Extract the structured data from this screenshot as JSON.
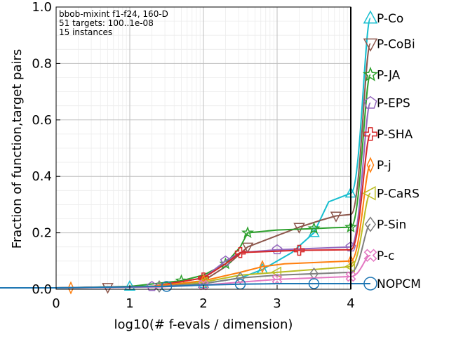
{
  "chart_data": {
    "type": "line",
    "xlabel": "log10(# f-evals / dimension)",
    "ylabel": "Fraction of function,target pairs",
    "xlim": [
      0,
      4
    ],
    "ylim": [
      0,
      1
    ],
    "xticks": [
      "0",
      "1",
      "2",
      "3",
      "4"
    ],
    "yticks": [
      "0.0",
      "0.2",
      "0.4",
      "0.6",
      "0.8",
      "1.0"
    ],
    "grid": true,
    "legend": "right",
    "annotations": [
      "bbob-mixint f1-f24, 160-D",
      "51 targets: 100..1e-08",
      "15 instances"
    ],
    "series": [
      {
        "name": "P-Co",
        "color": "#17becf",
        "marker": "triangle-up",
        "final": 0.96,
        "x": [
          0,
          0.3,
          1,
          1.5,
          2,
          2.5,
          2.8,
          3.2,
          3.5,
          3.7,
          4
        ],
        "y": [
          0.005,
          0.006,
          0.01,
          0.012,
          0.02,
          0.04,
          0.07,
          0.13,
          0.2,
          0.31,
          0.34
        ]
      },
      {
        "name": "P-CoBi",
        "color": "#8c564b",
        "marker": "triangle-down",
        "final": 0.87,
        "x": [
          0,
          0.7,
          1.5,
          2,
          2.3,
          2.6,
          3,
          3.3,
          3.6,
          3.8,
          4
        ],
        "y": [
          0.005,
          0.007,
          0.012,
          0.03,
          0.08,
          0.15,
          0.19,
          0.22,
          0.245,
          0.26,
          0.265
        ]
      },
      {
        "name": "P-JA",
        "color": "#2ca02c",
        "marker": "star",
        "final": 0.76,
        "x": [
          0,
          1,
          1.7,
          2,
          2.3,
          2.5,
          2.6,
          3,
          3.5,
          3.75,
          4
        ],
        "y": [
          0.005,
          0.01,
          0.03,
          0.05,
          0.09,
          0.15,
          0.2,
          0.21,
          0.215,
          0.218,
          0.22
        ]
      },
      {
        "name": "P-EPS",
        "color": "#9467bd",
        "marker": "pentagon",
        "final": 0.66,
        "x": [
          0,
          1.3,
          2,
          2.3,
          2.5,
          3,
          3.5,
          4
        ],
        "y": [
          0.005,
          0.01,
          0.04,
          0.1,
          0.13,
          0.14,
          0.145,
          0.15
        ]
      },
      {
        "name": "P-SHA",
        "color": "#d62728",
        "marker": "plus",
        "final": 0.55,
        "x": [
          0,
          1.3,
          2,
          2.3,
          2.5,
          3,
          3.3,
          4
        ],
        "y": [
          0.005,
          0.01,
          0.04,
          0.09,
          0.13,
          0.135,
          0.138,
          0.14
        ]
      },
      {
        "name": "P-j",
        "color": "#ff7f0e",
        "marker": "diamond-thin",
        "final": 0.44,
        "x": [
          0,
          0.2,
          1.3,
          2,
          2.5,
          2.8,
          3.1,
          4
        ],
        "y": [
          0.005,
          0.005,
          0.01,
          0.03,
          0.06,
          0.08,
          0.09,
          0.1
        ]
      },
      {
        "name": "P-CaRS",
        "color": "#bcbd22",
        "marker": "triangle-left",
        "final": 0.34,
        "x": [
          0,
          1.5,
          2,
          2.5,
          3,
          3.5,
          4
        ],
        "y": [
          0.005,
          0.01,
          0.025,
          0.05,
          0.06,
          0.07,
          0.08
        ]
      },
      {
        "name": "P-Sin",
        "color": "#7f7f7f",
        "marker": "diamond",
        "final": 0.23,
        "x": [
          0,
          1.4,
          2,
          2.5,
          3,
          3.5,
          4
        ],
        "y": [
          0.005,
          0.01,
          0.02,
          0.04,
          0.05,
          0.055,
          0.06
        ]
      },
      {
        "name": "P-c",
        "color": "#e377c2",
        "marker": "cross",
        "final": 0.12,
        "x": [
          0,
          1.4,
          2,
          2.5,
          3,
          3.5,
          4
        ],
        "y": [
          0.005,
          0.008,
          0.015,
          0.025,
          0.035,
          0.04,
          0.045
        ]
      },
      {
        "name": "NOPCM",
        "color": "#1f77b4",
        "marker": "circle",
        "final": 0.02,
        "x": [
          0,
          1.5,
          2,
          2.5,
          3,
          3.5,
          4
        ],
        "y": [
          0.005,
          0.01,
          0.015,
          0.018,
          0.02,
          0.02,
          0.02
        ]
      }
    ]
  }
}
